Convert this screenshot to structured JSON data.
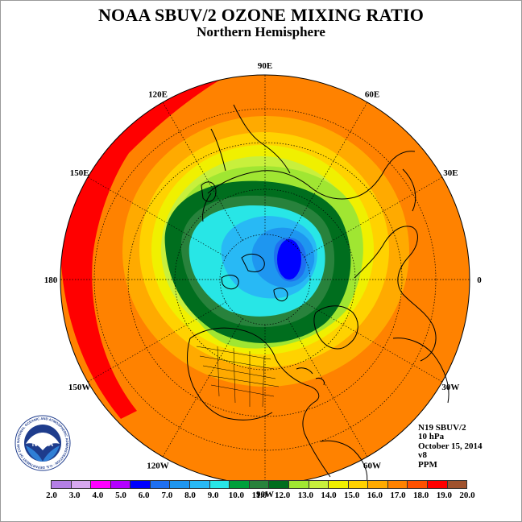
{
  "title": "NOAA SBUV/2 OZONE MIXING RATIO",
  "subtitle": "Northern Hemisphere",
  "longitude_labels": [
    {
      "text": "90E",
      "lon": 90
    },
    {
      "text": "60E",
      "lon": 60
    },
    {
      "text": "30E",
      "lon": 30
    },
    {
      "text": "0",
      "lon": 0
    },
    {
      "text": "30W",
      "lon": -30
    },
    {
      "text": "60W",
      "lon": -60
    },
    {
      "text": "90W",
      "lon": -90
    },
    {
      "text": "120W",
      "lon": -120
    },
    {
      "text": "150W",
      "lon": -150
    },
    {
      "text": "180",
      "lon": 180
    },
    {
      "text": "150E",
      "lon": 150
    },
    {
      "text": "120E",
      "lon": 120
    }
  ],
  "info": {
    "line1": "N19 SBUV/2",
    "line2": "10 hPa",
    "line3": "October 15, 2014",
    "line4": "v8",
    "line5": "PPM"
  },
  "colorbar": {
    "ticks": [
      "2.0",
      "3.0",
      "4.0",
      "5.0",
      "6.0",
      "7.0",
      "8.0",
      "9.0",
      "10.0",
      "11.0",
      "12.0",
      "13.0",
      "14.0",
      "15.0",
      "16.0",
      "17.0",
      "18.0",
      "19.0",
      "20.0"
    ],
    "colors": [
      "#b47fe6",
      "#d8a8f0",
      "#ff00ff",
      "#b400ff",
      "#0000ff",
      "#1e6ff0",
      "#1e96f0",
      "#28b9f5",
      "#28e6e6",
      "#00a03c",
      "#28823c",
      "#006e1e",
      "#a0e632",
      "#c8f03c",
      "#f0f000",
      "#ffd200",
      "#ffaa00",
      "#ff8200",
      "#ff5000",
      "#ff0000",
      "#a0522d"
    ]
  },
  "logo": {
    "text": "NOAA",
    "ring_text": "NATIONAL OCEANIC AND ATMOSPHERIC ADMINISTRATION · U.S. DEPARTMENT OF COMMERCE"
  }
}
